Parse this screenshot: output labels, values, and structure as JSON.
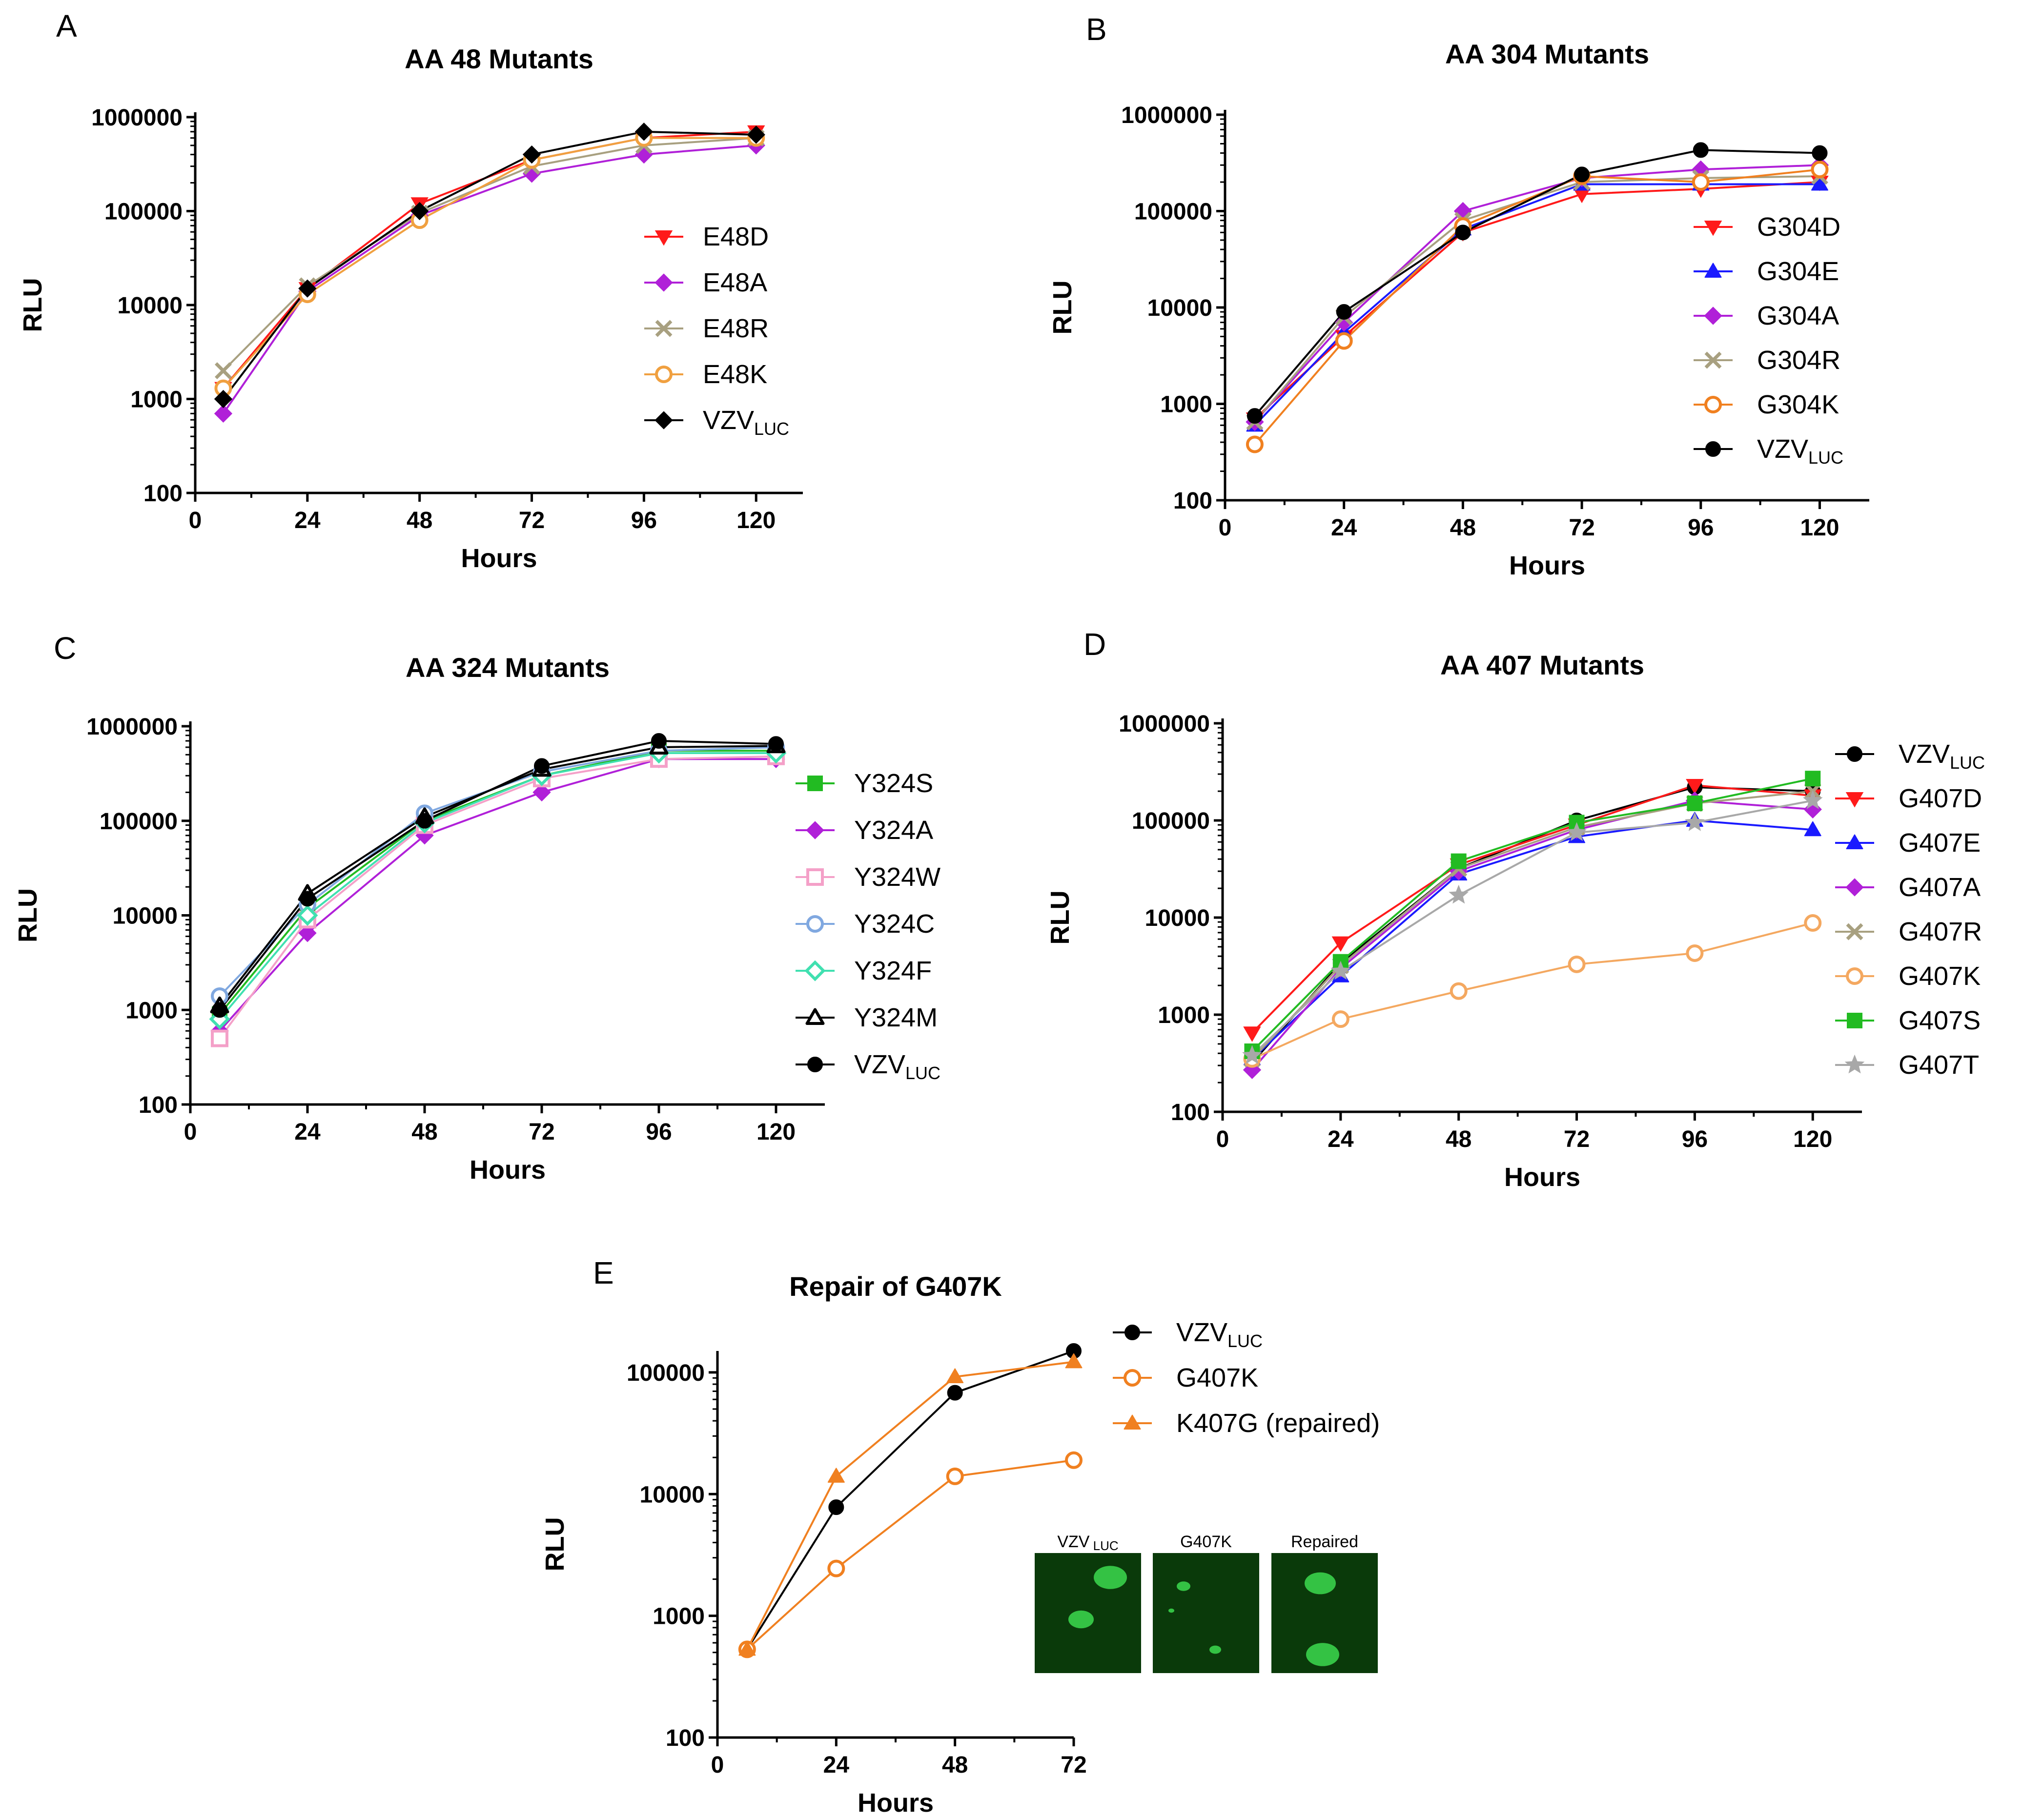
{
  "figure": {
    "inset": {
      "labels": [
        "VZV",
        "G407K",
        "Repaired"
      ],
      "label_subscripts": [
        "LUC",
        "",
        ""
      ],
      "colors": {
        "background": "#0a3a0a",
        "plaque": "#39d14a"
      }
    }
  },
  "chart_data": [
    {
      "panel": "A",
      "type": "line",
      "title": "AA 48 Mutants",
      "xlabel": "Hours",
      "ylabel": "RLU",
      "yscale": "log",
      "ylim": [
        100,
        1000000
      ],
      "xlim": [
        0,
        130
      ],
      "xticks": [
        0,
        24,
        48,
        72,
        96,
        120
      ],
      "yticks": [
        100,
        1000,
        10000,
        100000,
        1000000
      ],
      "legend_position": "right",
      "x": [
        6,
        24,
        48,
        72,
        96,
        120
      ],
      "series": [
        {
          "name": "E48D",
          "sub": "",
          "color": "#ff1a1a",
          "marker": "triangle-down",
          "values": [
            1300,
            15000,
            120000,
            350000,
            600000,
            700000
          ]
        },
        {
          "name": "E48A",
          "sub": "",
          "color": "#b020d8",
          "marker": "diamond",
          "values": [
            700,
            14000,
            90000,
            250000,
            400000,
            500000
          ]
        },
        {
          "name": "E48R",
          "sub": "",
          "color": "#a8a080",
          "marker": "x",
          "values": [
            2000,
            16000,
            95000,
            300000,
            500000,
            600000
          ]
        },
        {
          "name": "E48K",
          "sub": "",
          "color": "#f0a040",
          "marker": "circle-open",
          "values": [
            1300,
            13000,
            80000,
            350000,
            600000,
            600000
          ]
        },
        {
          "name": "VZV",
          "sub": "LUC",
          "color": "#000000",
          "marker": "diamond",
          "values": [
            1000,
            15000,
            100000,
            400000,
            700000,
            650000
          ]
        }
      ]
    },
    {
      "panel": "B",
      "type": "line",
      "title": "AA 304 Mutants",
      "xlabel": "Hours",
      "ylabel": "RLU",
      "yscale": "log",
      "ylim": [
        100,
        1000000
      ],
      "xlim": [
        0,
        130
      ],
      "xticks": [
        0,
        24,
        48,
        72,
        96,
        120
      ],
      "yticks": [
        100,
        1000,
        10000,
        100000,
        1000000
      ],
      "legend_position": "right",
      "x": [
        6,
        24,
        48,
        72,
        96,
        120
      ],
      "series": [
        {
          "name": "G304D",
          "sub": "",
          "color": "#ff1a1a",
          "marker": "triangle-down",
          "values": [
            700,
            5000,
            60000,
            150000,
            170000,
            200000
          ]
        },
        {
          "name": "G304E",
          "sub": "",
          "color": "#1a1aff",
          "marker": "triangle-up",
          "values": [
            600,
            5500,
            65000,
            190000,
            190000,
            190000
          ]
        },
        {
          "name": "G304A",
          "sub": "",
          "color": "#b020d8",
          "marker": "diamond",
          "values": [
            650,
            7000,
            100000,
            220000,
            270000,
            300000
          ]
        },
        {
          "name": "G304R",
          "sub": "",
          "color": "#a8a080",
          "marker": "x",
          "values": [
            650,
            8000,
            80000,
            200000,
            220000,
            230000
          ]
        },
        {
          "name": "G304K",
          "sub": "",
          "color": "#f08020",
          "marker": "circle-open",
          "values": [
            380,
            4500,
            70000,
            230000,
            200000,
            270000
          ]
        },
        {
          "name": "VZV",
          "sub": "LUC",
          "color": "#000000",
          "marker": "circle",
          "values": [
            750,
            9000,
            60000,
            240000,
            430000,
            400000
          ]
        }
      ]
    },
    {
      "panel": "C",
      "type": "line",
      "title": "AA 324 Mutants",
      "xlabel": "Hours",
      "ylabel": "RLU",
      "yscale": "log",
      "ylim": [
        100,
        1000000
      ],
      "xlim": [
        0,
        130
      ],
      "xticks": [
        0,
        24,
        48,
        72,
        96,
        120
      ],
      "yticks": [
        100,
        1000,
        10000,
        100000,
        1000000
      ],
      "legend_position": "right",
      "x": [
        6,
        24,
        48,
        72,
        96,
        120
      ],
      "series": [
        {
          "name": "Y324S",
          "sub": "",
          "color": "#22bb22",
          "marker": "square",
          "values": [
            900,
            12000,
            100000,
            300000,
            550000,
            550000
          ]
        },
        {
          "name": "Y324A",
          "sub": "",
          "color": "#b020d8",
          "marker": "diamond",
          "values": [
            600,
            6500,
            70000,
            200000,
            450000,
            450000
          ]
        },
        {
          "name": "Y324W",
          "sub": "",
          "color": "#f4a0c8",
          "marker": "square-open",
          "values": [
            500,
            9000,
            90000,
            280000,
            450000,
            480000
          ]
        },
        {
          "name": "Y324C",
          "sub": "",
          "color": "#80a8e0",
          "marker": "circle-open",
          "values": [
            1400,
            13000,
            120000,
            330000,
            550000,
            600000
          ]
        },
        {
          "name": "Y324F",
          "sub": "",
          "color": "#40e0b0",
          "marker": "diamond-open",
          "values": [
            800,
            10000,
            95000,
            300000,
            520000,
            520000
          ]
        },
        {
          "name": "Y324M",
          "sub": "",
          "color": "#000000",
          "marker": "triangle-open",
          "values": [
            1100,
            17000,
            110000,
            350000,
            600000,
            620000
          ]
        },
        {
          "name": "VZV",
          "sub": "LUC",
          "color": "#000000",
          "marker": "circle",
          "values": [
            1000,
            15000,
            100000,
            380000,
            700000,
            650000
          ]
        }
      ]
    },
    {
      "panel": "D",
      "type": "line",
      "title": "AA 407 Mutants",
      "xlabel": "Hours",
      "ylabel": "RLU",
      "yscale": "log",
      "ylim": [
        100,
        1000000
      ],
      "xlim": [
        0,
        130
      ],
      "xticks": [
        0,
        24,
        48,
        72,
        96,
        120
      ],
      "yticks": [
        100,
        1000,
        10000,
        100000,
        1000000
      ],
      "legend_position": "right",
      "x": [
        6,
        24,
        48,
        72,
        96,
        120
      ],
      "series": [
        {
          "name": "VZV",
          "sub": "LUC",
          "color": "#000000",
          "marker": "circle",
          "values": [
            320,
            3400,
            32000,
            100000,
            220000,
            200000
          ]
        },
        {
          "name": "G407D",
          "sub": "",
          "color": "#ff1a1a",
          "marker": "triangle-down",
          "values": [
            650,
            5500,
            35000,
            90000,
            230000,
            180000
          ]
        },
        {
          "name": "G407E",
          "sub": "",
          "color": "#1a1aff",
          "marker": "triangle-up",
          "values": [
            350,
            2500,
            28000,
            68000,
            100000,
            80000
          ]
        },
        {
          "name": "G407A",
          "sub": "",
          "color": "#b020d8",
          "marker": "diamond",
          "values": [
            270,
            3000,
            30000,
            80000,
            160000,
            130000
          ]
        },
        {
          "name": "G407R",
          "sub": "",
          "color": "#a8a080",
          "marker": "x",
          "values": [
            350,
            3200,
            32000,
            85000,
            150000,
            200000
          ]
        },
        {
          "name": "G407K",
          "sub": "",
          "color": "#f4a860",
          "marker": "circle-open",
          "values": [
            350,
            900,
            1750,
            3300,
            4300,
            8800
          ]
        },
        {
          "name": "G407S",
          "sub": "",
          "color": "#22bb22",
          "marker": "square",
          "values": [
            420,
            3500,
            38000,
            95000,
            150000,
            270000
          ]
        },
        {
          "name": "G407T",
          "sub": "",
          "color": "#a8a8a8",
          "marker": "star",
          "values": [
            380,
            2800,
            17000,
            75000,
            95000,
            160000
          ]
        }
      ]
    },
    {
      "panel": "E",
      "type": "line",
      "title": "Repair of G407K",
      "xlabel": "Hours",
      "ylabel": "RLU",
      "yscale": "log",
      "ylim": [
        100,
        150000
      ],
      "xlim": [
        0,
        72
      ],
      "xticks": [
        0,
        24,
        48,
        72
      ],
      "yticks": [
        100,
        1000,
        10000,
        100000
      ],
      "legend_position": "top-right",
      "x": [
        6,
        24,
        48,
        72
      ],
      "series": [
        {
          "name": "VZV",
          "sub": "LUC",
          "color": "#000000",
          "marker": "circle",
          "values": [
            530,
            7800,
            68000,
            150000
          ]
        },
        {
          "name": "G407K",
          "sub": "",
          "color": "#f08020",
          "marker": "circle-open",
          "values": [
            530,
            2450,
            14000,
            19000
          ]
        },
        {
          "name": "K407G (repaired)",
          "sub": "",
          "color": "#f08020",
          "marker": "triangle-up",
          "values": [
            530,
            14000,
            92000,
            122000
          ]
        }
      ]
    }
  ]
}
